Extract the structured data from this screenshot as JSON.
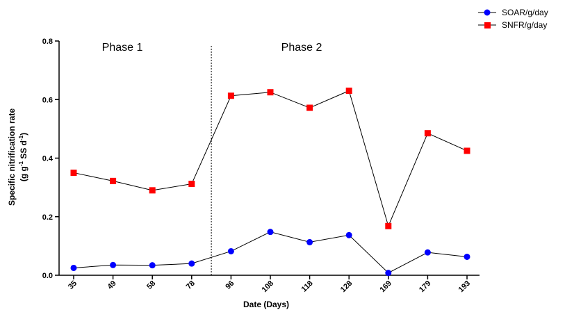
{
  "chart_data": {
    "type": "line",
    "categories": [
      "35",
      "49",
      "58",
      "78",
      "96",
      "108",
      "118",
      "128",
      "169",
      "179",
      "193"
    ],
    "series": [
      {
        "name": "SOAR/g/day",
        "marker": "circle",
        "color": "#0000ff",
        "values": [
          0.025,
          0.035,
          0.034,
          0.04,
          0.082,
          0.148,
          0.113,
          0.137,
          0.008,
          0.078,
          0.063
        ]
      },
      {
        "name": "SNFR/g/day",
        "marker": "square",
        "color": "#ff0000",
        "values": [
          0.35,
          0.322,
          0.29,
          0.312,
          0.613,
          0.625,
          0.572,
          0.63,
          0.168,
          0.485,
          0.425
        ]
      }
    ],
    "ylim": [
      0.0,
      0.8
    ],
    "yticks": [
      "0.0",
      "0.2",
      "0.4",
      "0.6",
      "0.8"
    ],
    "xlabel": "Date (Days)",
    "ylabel_line1": "Specific nitrification rate",
    "ylabel_line2": "(g g-1 SS d-1)",
    "ylabel_parts": [
      "(g g",
      "-1",
      " SS d",
      "-1",
      ")"
    ],
    "annotations": [
      {
        "text": "Phase 1",
        "region": "before_divider"
      },
      {
        "text": "Phase 2",
        "region": "after_divider"
      }
    ],
    "divider_between": [
      "78",
      "96"
    ],
    "divider_style": "dotted",
    "line_color": "#000000",
    "legend_position": "top-right",
    "grid": false
  }
}
